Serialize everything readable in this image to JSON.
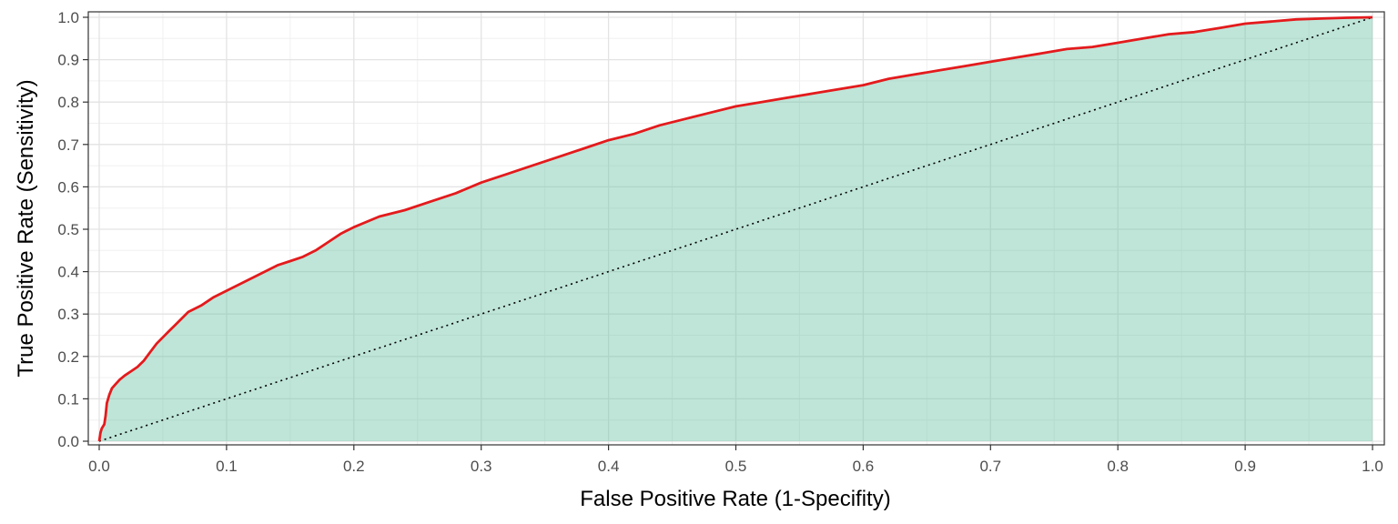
{
  "chart_data": {
    "type": "area",
    "title": "",
    "xlabel": "False Positive Rate (1-Specifity)",
    "ylabel": "True Positive Rate (Sensitivity)",
    "xlim": [
      0,
      1
    ],
    "ylim": [
      0,
      1
    ],
    "grid": true,
    "x_ticks": [
      "0.0",
      "0.1",
      "0.2",
      "0.3",
      "0.4",
      "0.5",
      "0.6",
      "0.7",
      "0.8",
      "0.9",
      "1.0"
    ],
    "y_ticks": [
      "0.0",
      "0.1",
      "0.2",
      "0.3",
      "0.4",
      "0.5",
      "0.6",
      "0.7",
      "0.8",
      "0.9",
      "1.0"
    ],
    "colors": {
      "roc_line": "#e41a1c",
      "fill": "#66c2a5",
      "reference_line": "#000000"
    },
    "series": [
      {
        "style": "solid",
        "x": [
          0,
          0.001,
          0.002,
          0.004,
          0.005,
          0.006,
          0.008,
          0.01,
          0.013,
          0.016,
          0.02,
          0.025,
          0.03,
          0.035,
          0.04,
          0.045,
          0.05,
          0.055,
          0.06,
          0.065,
          0.07,
          0.08,
          0.09,
          0.1,
          0.11,
          0.12,
          0.13,
          0.14,
          0.15,
          0.16,
          0.17,
          0.18,
          0.19,
          0.2,
          0.22,
          0.24,
          0.26,
          0.28,
          0.3,
          0.32,
          0.34,
          0.36,
          0.38,
          0.4,
          0.42,
          0.44,
          0.46,
          0.48,
          0.5,
          0.52,
          0.54,
          0.56,
          0.58,
          0.6,
          0.62,
          0.64,
          0.66,
          0.68,
          0.7,
          0.72,
          0.74,
          0.76,
          0.78,
          0.8,
          0.82,
          0.84,
          0.86,
          0.88,
          0.9,
          0.92,
          0.94,
          0.96,
          0.98,
          1.0
        ],
        "y": [
          0,
          0.02,
          0.03,
          0.04,
          0.06,
          0.09,
          0.11,
          0.125,
          0.135,
          0.145,
          0.155,
          0.165,
          0.175,
          0.19,
          0.21,
          0.23,
          0.245,
          0.26,
          0.275,
          0.29,
          0.305,
          0.32,
          0.34,
          0.355,
          0.37,
          0.385,
          0.4,
          0.415,
          0.425,
          0.435,
          0.45,
          0.47,
          0.49,
          0.505,
          0.53,
          0.545,
          0.565,
          0.585,
          0.61,
          0.63,
          0.65,
          0.67,
          0.69,
          0.71,
          0.725,
          0.745,
          0.76,
          0.775,
          0.79,
          0.8,
          0.81,
          0.82,
          0.83,
          0.84,
          0.855,
          0.865,
          0.875,
          0.885,
          0.895,
          0.905,
          0.915,
          0.925,
          0.93,
          0.94,
          0.95,
          0.96,
          0.965,
          0.975,
          0.985,
          0.99,
          0.995,
          0.997,
          0.999,
          1.0
        ]
      },
      {
        "style": "dotted",
        "x": [
          0,
          1
        ],
        "y": [
          0,
          1
        ]
      }
    ]
  }
}
